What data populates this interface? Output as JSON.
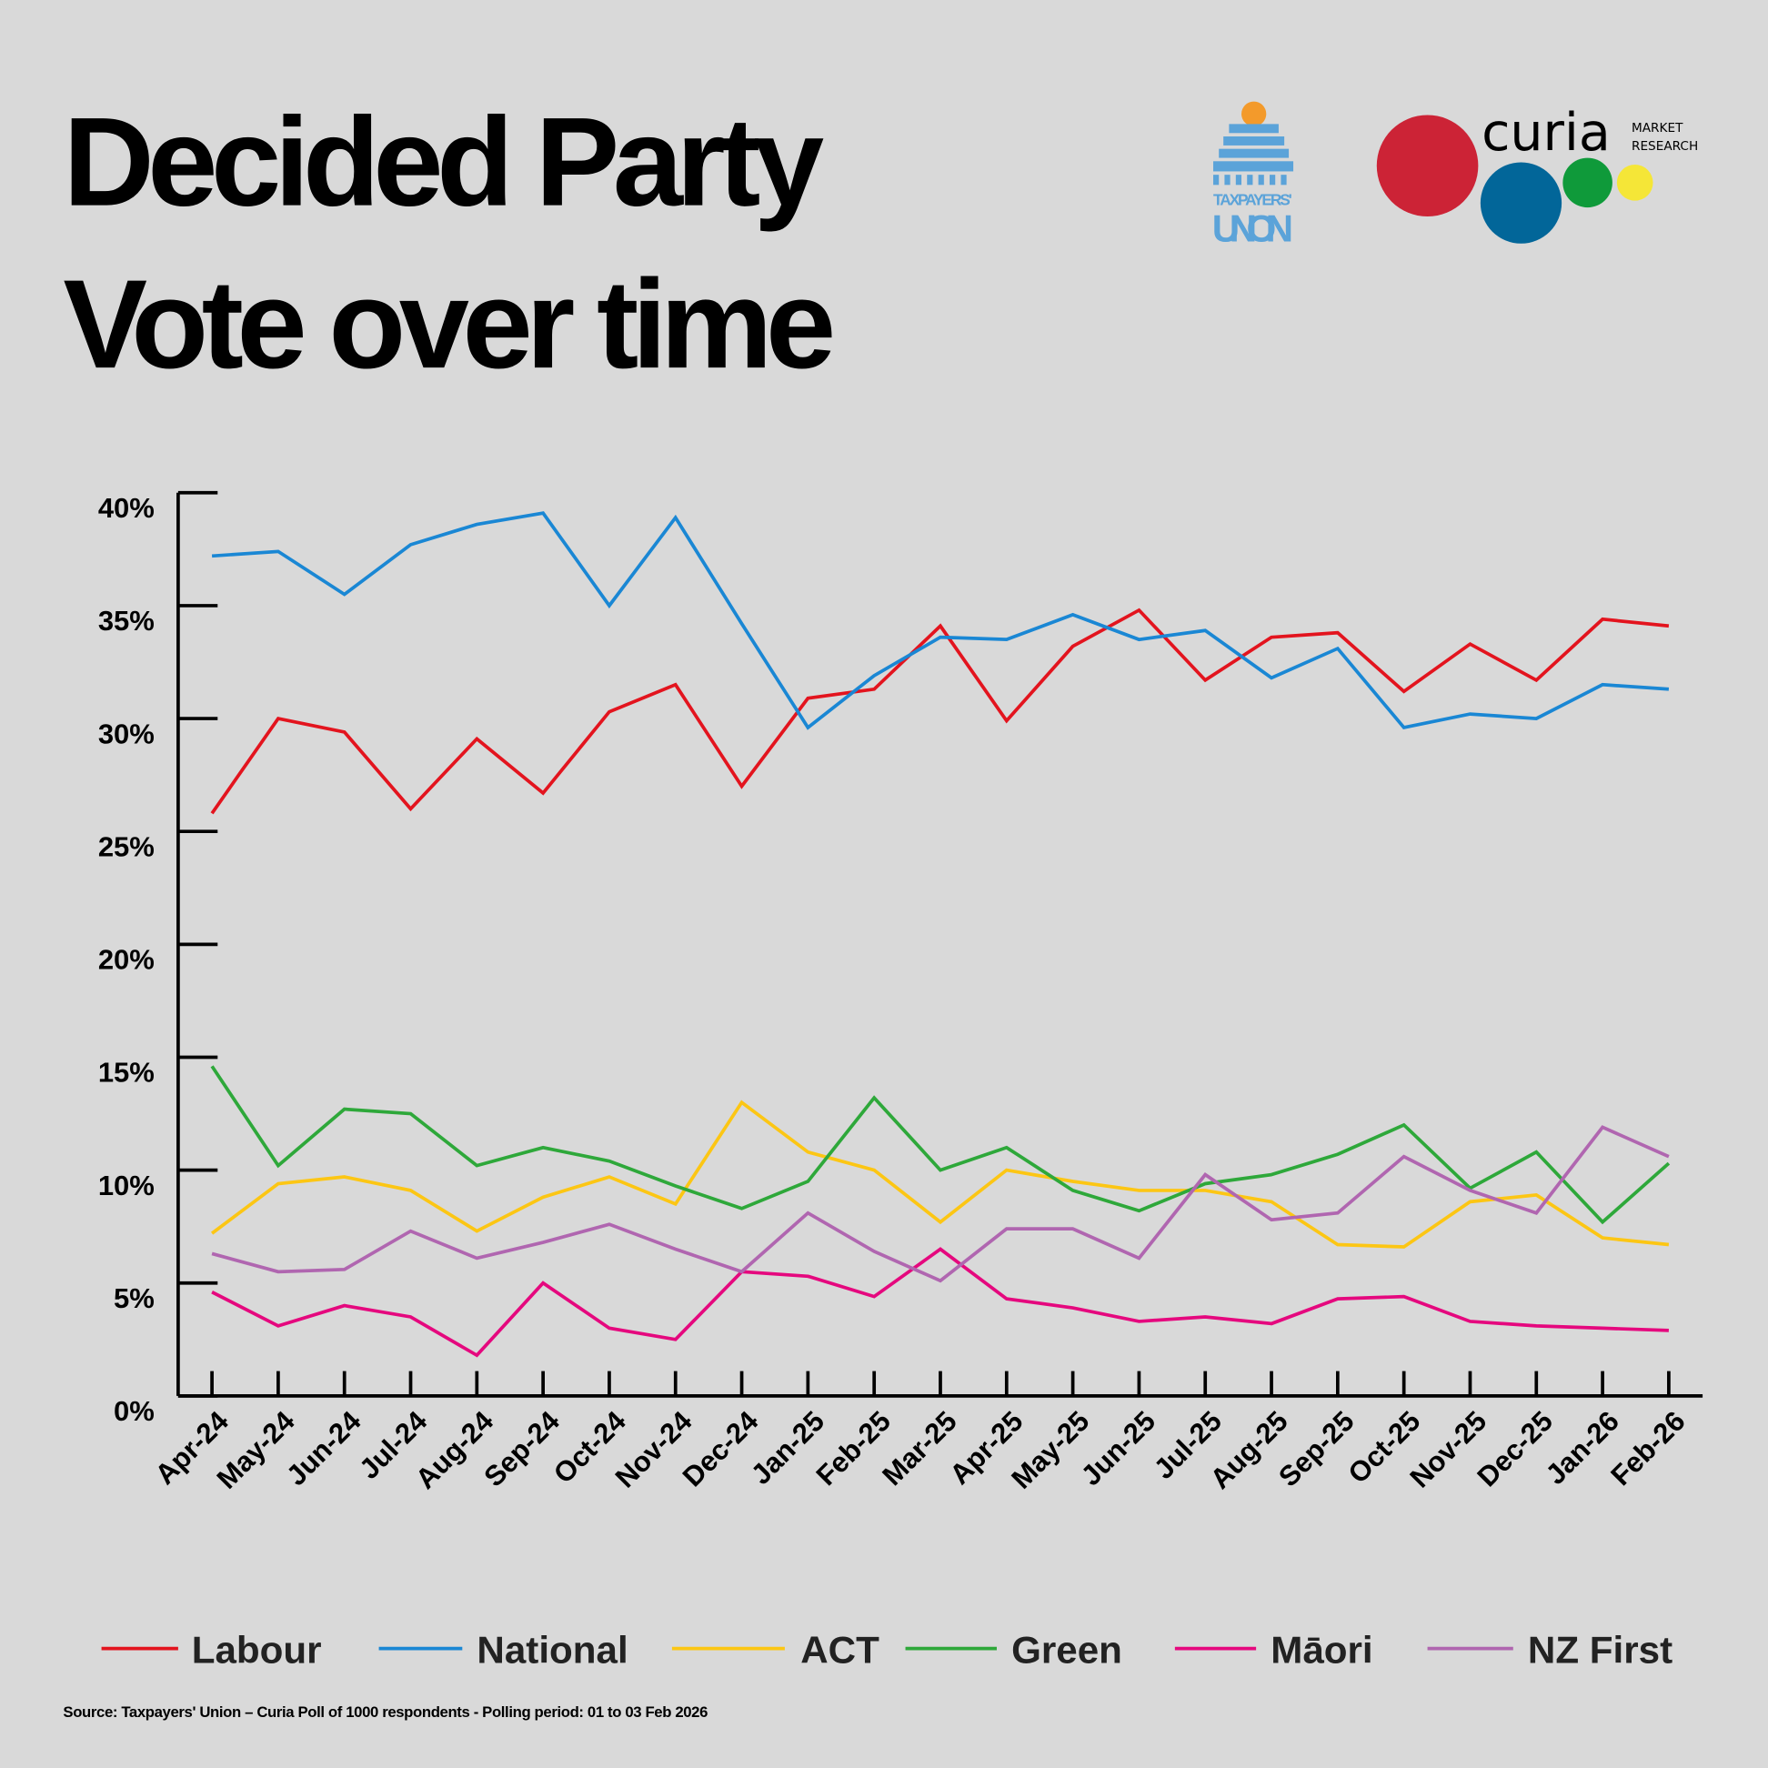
{
  "chart_data": {
    "type": "line",
    "title": "Decided Party Vote over time",
    "title_lines": [
      "Decided Party",
      "Vote over time"
    ],
    "xlabel": "",
    "ylabel": "",
    "ylim": [
      0,
      40
    ],
    "yticks": [
      "0%",
      "5%",
      "10%",
      "15%",
      "20%",
      "25%",
      "30%",
      "35%",
      "40%"
    ],
    "grid": false,
    "legend_placement": "bottom",
    "categories": [
      "Apr-24",
      "May-24",
      "Jun-24",
      "Jul-24",
      "Aug-24",
      "Sep-24",
      "Oct-24",
      "Nov-24",
      "Dec-24",
      "Jan-25",
      "Feb-25",
      "Mar-25",
      "Apr-25",
      "May-25",
      "Jun-25",
      "Jul-25",
      "Aug-25",
      "Sep-25",
      "Oct-25",
      "Nov-25",
      "Dec-25",
      "Jan-26",
      "Feb-26"
    ],
    "series": [
      {
        "name": "Labour",
        "color": "#e3141e",
        "values": [
          25.8,
          30.0,
          29.4,
          26.0,
          29.1,
          26.7,
          30.3,
          31.5,
          27.0,
          30.9,
          31.3,
          34.1,
          29.9,
          33.2,
          34.8,
          31.7,
          33.6,
          33.8,
          31.2,
          33.3,
          31.7,
          34.4,
          34.1
        ]
      },
      {
        "name": "National",
        "color": "#1a87d4",
        "values": [
          37.2,
          37.4,
          35.5,
          37.7,
          38.6,
          39.1,
          35.0,
          38.9,
          34.2,
          29.6,
          31.9,
          33.6,
          33.5,
          34.6,
          33.5,
          33.9,
          31.8,
          33.1,
          29.6,
          30.2,
          30.0,
          31.5,
          31.3
        ]
      },
      {
        "name": "ACT",
        "color": "#fcc614",
        "values": [
          7.2,
          9.4,
          9.7,
          9.1,
          7.3,
          8.8,
          9.7,
          8.5,
          13.0,
          10.8,
          10.0,
          7.7,
          10.0,
          9.5,
          9.1,
          9.1,
          8.6,
          6.7,
          6.6,
          8.6,
          8.9,
          7.0,
          6.7
        ]
      },
      {
        "name": "Green",
        "color": "#2ea83a",
        "values": [
          14.6,
          10.2,
          12.7,
          12.5,
          10.2,
          11.0,
          10.4,
          9.3,
          8.3,
          9.5,
          13.2,
          10.0,
          11.0,
          9.1,
          8.2,
          9.4,
          9.8,
          10.7,
          12.0,
          9.2,
          10.8,
          7.7,
          10.3
        ]
      },
      {
        "name": "Māori",
        "color": "#e5087e",
        "values": [
          4.6,
          3.1,
          4.0,
          3.5,
          1.8,
          5.0,
          3.0,
          2.5,
          5.5,
          5.3,
          4.4,
          6.5,
          4.3,
          3.9,
          3.3,
          3.5,
          3.2,
          4.3,
          4.4,
          3.3,
          3.1,
          3.0,
          2.9
        ]
      },
      {
        "name": "NZ First",
        "color": "#b066b0",
        "values": [
          6.3,
          5.5,
          5.6,
          7.3,
          6.1,
          6.8,
          7.6,
          6.5,
          5.5,
          8.1,
          6.4,
          5.1,
          7.4,
          7.4,
          6.1,
          9.8,
          7.8,
          8.1,
          10.6,
          9.1,
          8.1,
          11.9,
          10.6
        ]
      }
    ]
  },
  "logos": {
    "taxpayers_union": "TAXPAYERS' UNION",
    "curia": "curia",
    "curia_sub": [
      "MARKET",
      "RESEARCH"
    ]
  },
  "source": "Source: Taxpayers' Union – Curia Poll of 1000 respondents - Polling period: 01 to 03 Feb 2026"
}
